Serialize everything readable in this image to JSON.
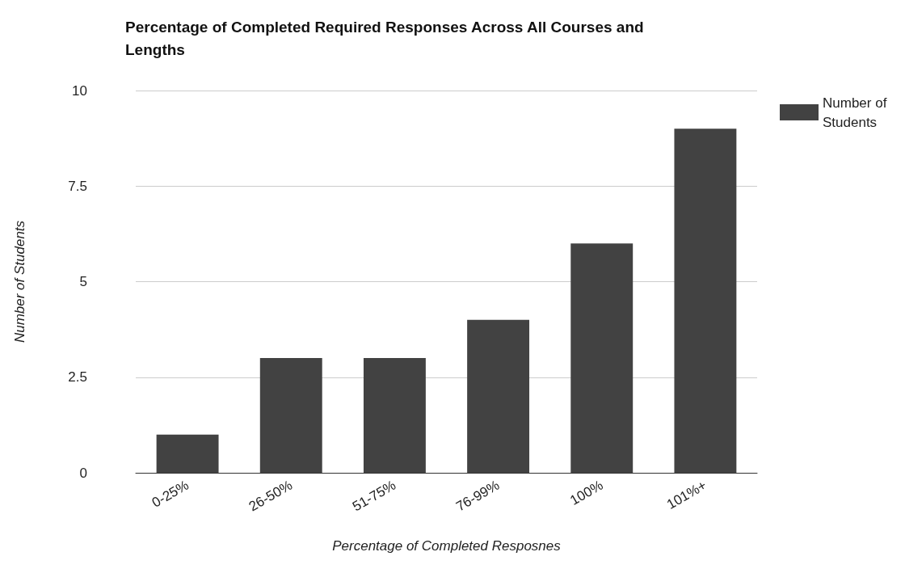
{
  "chart_data": {
    "type": "bar",
    "title": "Percentage of Completed Required Responses Across All Courses and Lengths",
    "xlabel": "Percentage of Completed Resposnes",
    "ylabel": "Number of Students",
    "categories": [
      "0-25%",
      "26-50%",
      "51-75%",
      "76-99%",
      "100%",
      "101%+"
    ],
    "series": [
      {
        "name": "Number of Students",
        "color": "#424242",
        "values": [
          1,
          3,
          3,
          4,
          6,
          9
        ]
      }
    ],
    "ylim": [
      0,
      10
    ],
    "yticks": [
      0,
      2.5,
      5,
      7.5,
      10
    ],
    "grid": "y",
    "legend": "top right"
  }
}
